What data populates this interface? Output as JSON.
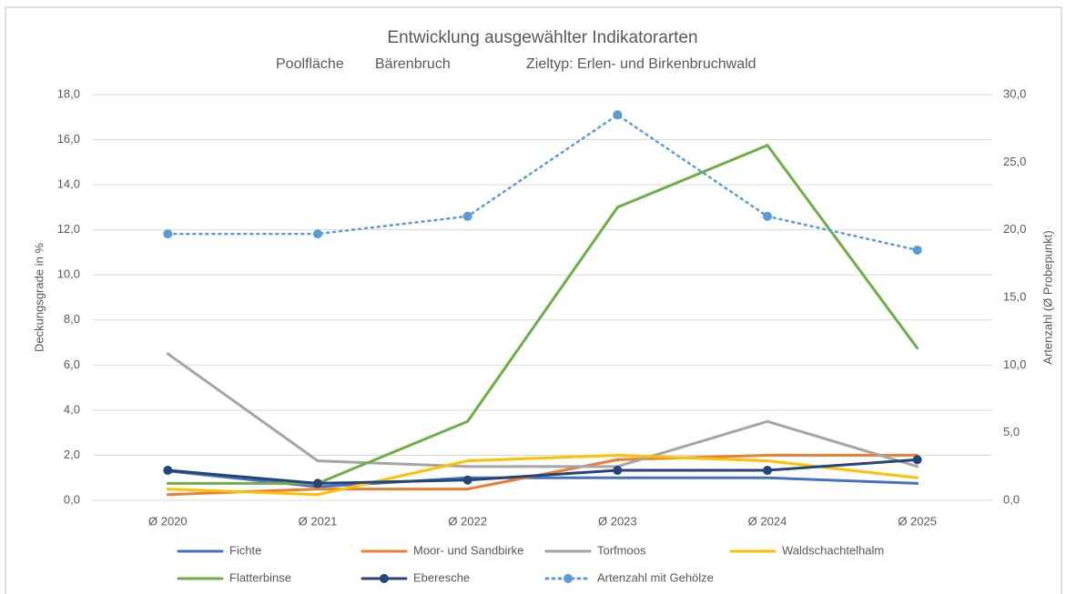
{
  "chart_data": {
    "type": "line",
    "title": "Entwicklung ausgewählter Indikatorarten",
    "subtitle": [
      "Poolfläche",
      "Bärenbruch",
      "Zieltyp: Erlen- und Birkenbruchwald"
    ],
    "ylabel": "Deckungsgrade in %",
    "y2label": "Artenzahl (Ø Probepunkt)",
    "categories": [
      "Ø 2020",
      "Ø 2021",
      "Ø 2022",
      "Ø 2023",
      "Ø 2024",
      "Ø 2025"
    ],
    "ylim": [
      0,
      18
    ],
    "yticks": [
      {
        "value": 0,
        "label": "0,0"
      },
      {
        "value": 2,
        "label": "2,0"
      },
      {
        "value": 4,
        "label": "4,0"
      },
      {
        "value": 6,
        "label": "6,0"
      },
      {
        "value": 8,
        "label": "8,0"
      },
      {
        "value": 10,
        "label": "10,0"
      },
      {
        "value": 12,
        "label": "12,0"
      },
      {
        "value": 14,
        "label": "14,0"
      },
      {
        "value": 16,
        "label": "16,0"
      },
      {
        "value": 18,
        "label": "18,0"
      }
    ],
    "y2lim": [
      0,
      30
    ],
    "y2ticks": [
      {
        "value": 0,
        "label": "0,0"
      },
      {
        "value": 5,
        "label": "5,0"
      },
      {
        "value": 10,
        "label": "10,0"
      },
      {
        "value": 15,
        "label": "15,0"
      },
      {
        "value": 20,
        "label": "20,0"
      },
      {
        "value": 25,
        "label": "25,0"
      },
      {
        "value": 30,
        "label": "30,0"
      }
    ],
    "grid": true,
    "legend": "bottom",
    "series": [
      {
        "name": "Fichte",
        "color": "#4472c4",
        "values": [
          1.3,
          0.6,
          1.0,
          1.0,
          1.0,
          0.75
        ]
      },
      {
        "name": "Moor- und Sandbirke",
        "color": "#ed7d31",
        "values": [
          0.25,
          0.5,
          0.5,
          1.8,
          2.0,
          2.0
        ]
      },
      {
        "name": "Torfmoos",
        "color": "#a5a5a5",
        "values": [
          6.5,
          1.75,
          1.5,
          1.5,
          3.5,
          1.5
        ]
      },
      {
        "name": "Waldschachtelhalm",
        "color": "#ffc000",
        "values": [
          0.5,
          0.25,
          1.75,
          2.0,
          1.75,
          1.0
        ]
      },
      {
        "name": "Flatterbinse",
        "color": "#70ad47",
        "values": [
          0.75,
          0.75,
          3.5,
          13.0,
          15.75,
          6.75
        ]
      },
      {
        "name": "Eberesche",
        "color": "#264478",
        "marker": true,
        "values": [
          1.33,
          0.75,
          0.9,
          1.33,
          1.33,
          1.8
        ]
      },
      {
        "name": "Artenzahl mit Gehölze",
        "color": "#5b9bd5",
        "marker": true,
        "dotted": true,
        "axis": "y2",
        "values": [
          19.7,
          19.7,
          21.0,
          28.5,
          21.0,
          18.5
        ]
      }
    ]
  }
}
